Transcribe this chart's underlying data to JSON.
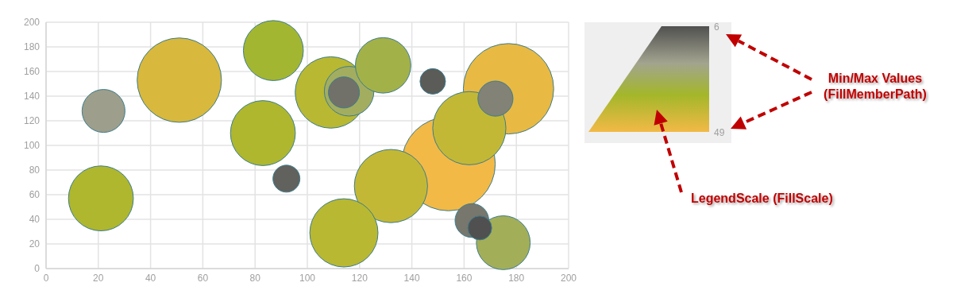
{
  "chart_data": {
    "type": "bubble",
    "x": [
      21,
      22,
      51,
      87,
      83,
      92,
      109,
      116,
      114,
      129,
      148,
      177,
      154,
      162,
      172,
      132,
      114,
      175,
      163,
      166
    ],
    "values": [
      57,
      128,
      153,
      177,
      110,
      73,
      143,
      144,
      143,
      165,
      152,
      146,
      85,
      114,
      138,
      67,
      29,
      21,
      39,
      33
    ],
    "sizes": [
      0.48,
      0.21,
      0.81,
      0.41,
      0.48,
      0.083,
      0.58,
      0.28,
      0.11,
      0.35,
      0.074,
      0.93,
      1,
      0.61,
      0.14,
      0.61,
      0.53,
      0.33,
      0.13,
      0.065
    ],
    "cvalues": [
      36,
      20,
      44,
      33,
      36,
      9,
      38,
      27,
      12,
      30,
      8,
      47,
      49,
      40,
      15,
      40,
      38,
      28,
      13,
      6
    ],
    "clim": [
      6,
      49
    ],
    "cticks": [
      6,
      49
    ],
    "xlim": [
      0,
      200
    ],
    "xticks": [
      0,
      20,
      40,
      60,
      80,
      100,
      120,
      140,
      160,
      180,
      200
    ],
    "ylim": [
      0,
      200
    ],
    "yticks": [
      0,
      20,
      40,
      60,
      80,
      100,
      120,
      140,
      160,
      180,
      200
    ],
    "grid": true,
    "annotations": [
      "Min/Max Values (FillMemberPath)",
      "LegendScale (FillScale)"
    ]
  }
}
